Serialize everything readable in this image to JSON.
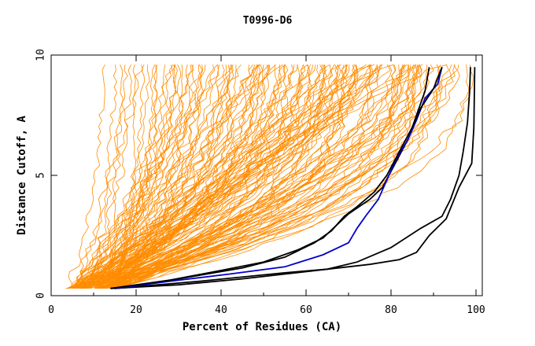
{
  "chart_data": {
    "type": "line",
    "title": "T0996-D6",
    "xlabel": "Percent of Residues (CA)",
    "ylabel": "Distance Cutoff, A",
    "xlim": [
      0,
      100
    ],
    "ylim": [
      0,
      10
    ],
    "x_ticks": [
      "0",
      "20",
      "40",
      "60",
      "80",
      "100"
    ],
    "y_ticks": [
      "0",
      "5",
      "10"
    ],
    "grid": false,
    "legend": "none",
    "colors": {
      "background_models": "#ff8c00",
      "highlight_black": "#000000",
      "highlight_blue": "#0000cc",
      "axes": "#000000"
    },
    "note_background": "Approximately 150 orange curves for other models, drawn procedurally.",
    "background_model_count": 150,
    "series": [
      {
        "color": "#000000",
        "points": [
          [
            14,
            0.3
          ],
          [
            30,
            0.45
          ],
          [
            45,
            0.7
          ],
          [
            55,
            0.9
          ],
          [
            65,
            1.1
          ],
          [
            75,
            1.3
          ],
          [
            82,
            1.5
          ],
          [
            86,
            1.8
          ],
          [
            89,
            2.5
          ],
          [
            93,
            3.2
          ],
          [
            96,
            4.5
          ],
          [
            99,
            5.5
          ],
          [
            99.5,
            7
          ],
          [
            99.7,
            9.5
          ]
        ]
      },
      {
        "color": "#000000",
        "points": [
          [
            15,
            0.3
          ],
          [
            35,
            0.6
          ],
          [
            55,
            0.95
          ],
          [
            65,
            1.1
          ],
          [
            72,
            1.4
          ],
          [
            80,
            2.0
          ],
          [
            87,
            2.8
          ],
          [
            92,
            3.3
          ],
          [
            94,
            4.0
          ],
          [
            96,
            5.0
          ],
          [
            97,
            6.0
          ],
          [
            98,
            7.2
          ],
          [
            98.5,
            8.5
          ],
          [
            98.7,
            9.5
          ]
        ]
      },
      {
        "color": "#000000",
        "points": [
          [
            14,
            0.3
          ],
          [
            25,
            0.55
          ],
          [
            40,
            1.05
          ],
          [
            50,
            1.4
          ],
          [
            58,
            1.9
          ],
          [
            64,
            2.4
          ],
          [
            67,
            2.9
          ],
          [
            70,
            3.4
          ],
          [
            75,
            4.0
          ],
          [
            78,
            4.5
          ],
          [
            81,
            5.5
          ],
          [
            84,
            6.5
          ],
          [
            86,
            7.5
          ],
          [
            88,
            8.5
          ],
          [
            89,
            9.5
          ]
        ]
      },
      {
        "color": "#0000cc",
        "points": [
          [
            15,
            0.3
          ],
          [
            28,
            0.6
          ],
          [
            42,
            0.9
          ],
          [
            55,
            1.2
          ],
          [
            64,
            1.7
          ],
          [
            70,
            2.2
          ],
          [
            72,
            2.8
          ],
          [
            74,
            3.3
          ],
          [
            77,
            4.0
          ],
          [
            79,
            4.8
          ],
          [
            81,
            5.6
          ],
          [
            84,
            6.5
          ],
          [
            86,
            7.3
          ],
          [
            88,
            8.2
          ],
          [
            91,
            8.8
          ],
          [
            92,
            9.5
          ]
        ]
      },
      {
        "color": "#000000",
        "points": [
          [
            14,
            0.3
          ],
          [
            30,
            0.7
          ],
          [
            45,
            1.15
          ],
          [
            55,
            1.6
          ],
          [
            62,
            2.2
          ],
          [
            66,
            2.7
          ],
          [
            69,
            3.3
          ],
          [
            72,
            3.7
          ],
          [
            76,
            4.3
          ],
          [
            79,
            5.0
          ],
          [
            82,
            6.0
          ],
          [
            85,
            7.0
          ],
          [
            87,
            7.8
          ],
          [
            90,
            8.6
          ],
          [
            92,
            9.5
          ]
        ]
      }
    ]
  }
}
